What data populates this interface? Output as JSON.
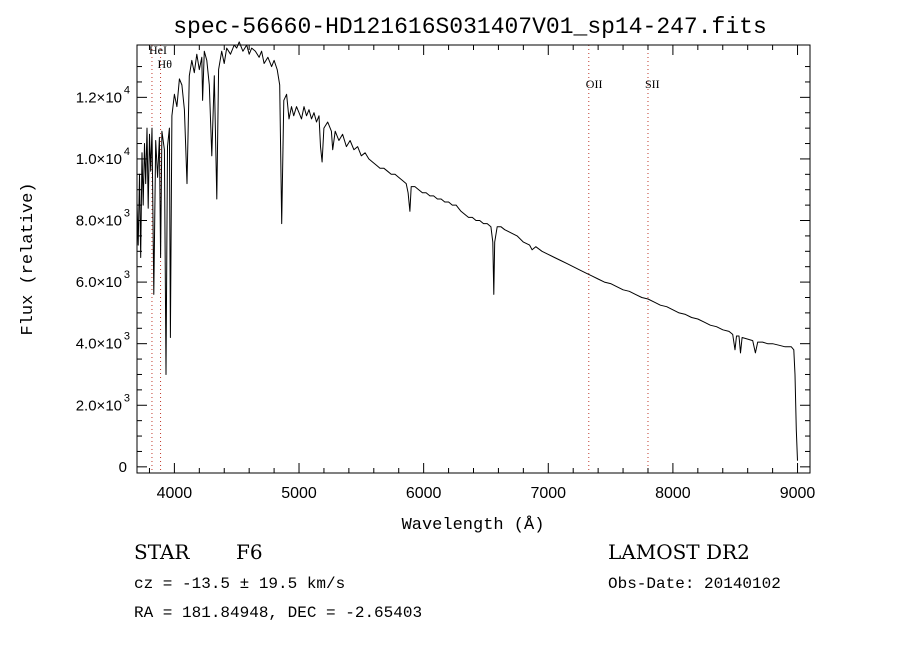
{
  "chart_data": {
    "type": "line",
    "title": "spec-56660-HD121616S031407V01_sp14-247.fits",
    "xlabel": "Wavelength (Å)",
    "ylabel": "Flux (relative)",
    "xlim": [
      3700,
      9100
    ],
    "ylim": [
      -200,
      13700
    ],
    "grid": false,
    "xticks": [
      {
        "value": 4000,
        "label": "4000"
      },
      {
        "value": 5000,
        "label": "5000"
      },
      {
        "value": 6000,
        "label": "6000"
      },
      {
        "value": 7000,
        "label": "7000"
      },
      {
        "value": 8000,
        "label": "8000"
      },
      {
        "value": 9000,
        "label": "9000"
      }
    ],
    "yticks": [
      {
        "value": 0,
        "mantissa": "0",
        "exponent": ""
      },
      {
        "value": 2000,
        "mantissa": "2.0×10",
        "exponent": "3"
      },
      {
        "value": 4000,
        "mantissa": "4.0×10",
        "exponent": "3"
      },
      {
        "value": 6000,
        "mantissa": "6.0×10",
        "exponent": "3"
      },
      {
        "value": 8000,
        "mantissa": "8.0×10",
        "exponent": "3"
      },
      {
        "value": 10000,
        "mantissa": "1.0×10",
        "exponent": "4"
      },
      {
        "value": 12000,
        "mantissa": "1.2×10",
        "exponent": "4"
      }
    ],
    "line_markers": [
      {
        "label": "HeI",
        "wavelength": 3820,
        "label_flux": 13400
      },
      {
        "label": "Hθ",
        "wavelength": 3889,
        "label_flux": 12950
      },
      {
        "label": "OII",
        "wavelength": 7325,
        "label_flux": 12300
      },
      {
        "label": "SII",
        "wavelength": 7800,
        "label_flux": 12300
      }
    ],
    "series": [
      {
        "points": [
          [
            3700,
            8600
          ],
          [
            3710,
            7200
          ],
          [
            3720,
            9500
          ],
          [
            3730,
            6800
          ],
          [
            3740,
            10200
          ],
          [
            3750,
            8500
          ],
          [
            3760,
            10500
          ],
          [
            3770,
            9200
          ],
          [
            3780,
            11000
          ],
          [
            3790,
            8400
          ],
          [
            3800,
            10800
          ],
          [
            3810,
            9600
          ],
          [
            3820,
            11000
          ],
          [
            3835,
            5600
          ],
          [
            3850,
            10600
          ],
          [
            3865,
            9400
          ],
          [
            3880,
            10700
          ],
          [
            3889,
            6800
          ],
          [
            3900,
            10900
          ],
          [
            3920,
            10300
          ],
          [
            3933,
            3000
          ],
          [
            3945,
            10400
          ],
          [
            3960,
            11000
          ],
          [
            3968,
            4200
          ],
          [
            3980,
            11400
          ],
          [
            4000,
            12100
          ],
          [
            4020,
            11700
          ],
          [
            4040,
            12600
          ],
          [
            4060,
            12400
          ],
          [
            4080,
            11600
          ],
          [
            4101,
            9200
          ],
          [
            4120,
            12700
          ],
          [
            4140,
            13200
          ],
          [
            4160,
            12800
          ],
          [
            4180,
            13400
          ],
          [
            4200,
            12900
          ],
          [
            4220,
            13300
          ],
          [
            4226,
            11900
          ],
          [
            4240,
            13500
          ],
          [
            4260,
            13200
          ],
          [
            4280,
            12400
          ],
          [
            4300,
            10100
          ],
          [
            4320,
            12700
          ],
          [
            4340,
            8700
          ],
          [
            4355,
            12900
          ],
          [
            4380,
            13500
          ],
          [
            4400,
            13100
          ],
          [
            4420,
            13600
          ],
          [
            4450,
            13400
          ],
          [
            4480,
            13700
          ],
          [
            4500,
            13600
          ],
          [
            4520,
            13800
          ],
          [
            4550,
            13500
          ],
          [
            4580,
            13700
          ],
          [
            4600,
            13400
          ],
          [
            4620,
            13600
          ],
          [
            4650,
            13500
          ],
          [
            4680,
            13300
          ],
          [
            4700,
            13500
          ],
          [
            4720,
            13100
          ],
          [
            4750,
            13300
          ],
          [
            4780,
            13000
          ],
          [
            4800,
            13200
          ],
          [
            4825,
            12900
          ],
          [
            4845,
            12400
          ],
          [
            4861,
            7900
          ],
          [
            4878,
            11900
          ],
          [
            4900,
            12100
          ],
          [
            4920,
            11300
          ],
          [
            4940,
            11700
          ],
          [
            4957,
            11400
          ],
          [
            4980,
            11700
          ],
          [
            5000,
            11500
          ],
          [
            5020,
            11300
          ],
          [
            5040,
            11700
          ],
          [
            5060,
            11400
          ],
          [
            5080,
            11600
          ],
          [
            5100,
            11300
          ],
          [
            5120,
            11500
          ],
          [
            5140,
            11200
          ],
          [
            5160,
            11400
          ],
          [
            5172,
            10400
          ],
          [
            5185,
            9900
          ],
          [
            5200,
            11000
          ],
          [
            5230,
            11200
          ],
          [
            5260,
            10900
          ],
          [
            5270,
            10300
          ],
          [
            5290,
            10900
          ],
          [
            5320,
            10600
          ],
          [
            5350,
            10800
          ],
          [
            5380,
            10400
          ],
          [
            5410,
            10600
          ],
          [
            5440,
            10300
          ],
          [
            5470,
            10400
          ],
          [
            5500,
            10100
          ],
          [
            5530,
            10200
          ],
          [
            5560,
            10000
          ],
          [
            5590,
            9900
          ],
          [
            5620,
            9800
          ],
          [
            5650,
            9700
          ],
          [
            5680,
            9700
          ],
          [
            5710,
            9600
          ],
          [
            5740,
            9500
          ],
          [
            5770,
            9500
          ],
          [
            5800,
            9400
          ],
          [
            5830,
            9300
          ],
          [
            5860,
            9200
          ],
          [
            5875,
            8900
          ],
          [
            5890,
            8300
          ],
          [
            5900,
            9100
          ],
          [
            5930,
            9100
          ],
          [
            5960,
            9000
          ],
          [
            5990,
            8900
          ],
          [
            6020,
            8900
          ],
          [
            6050,
            8800
          ],
          [
            6080,
            8800
          ],
          [
            6110,
            8700
          ],
          [
            6140,
            8700
          ],
          [
            6170,
            8600
          ],
          [
            6200,
            8600
          ],
          [
            6230,
            8500
          ],
          [
            6260,
            8500
          ],
          [
            6280,
            8400
          ],
          [
            6300,
            8300
          ],
          [
            6330,
            8200
          ],
          [
            6360,
            8100
          ],
          [
            6390,
            8100
          ],
          [
            6420,
            8000
          ],
          [
            6450,
            8000
          ],
          [
            6480,
            7900
          ],
          [
            6510,
            7900
          ],
          [
            6540,
            7800
          ],
          [
            6555,
            7300
          ],
          [
            6563,
            5600
          ],
          [
            6570,
            7300
          ],
          [
            6590,
            7800
          ],
          [
            6620,
            7800
          ],
          [
            6650,
            7700
          ],
          [
            6700,
            7600
          ],
          [
            6750,
            7500
          ],
          [
            6800,
            7300
          ],
          [
            6850,
            7200
          ],
          [
            6870,
            7050
          ],
          [
            6900,
            7150
          ],
          [
            6950,
            7000
          ],
          [
            7000,
            6900
          ],
          [
            7050,
            6800
          ],
          [
            7100,
            6700
          ],
          [
            7150,
            6600
          ],
          [
            7200,
            6500
          ],
          [
            7250,
            6400
          ],
          [
            7300,
            6300
          ],
          [
            7350,
            6200
          ],
          [
            7400,
            6100
          ],
          [
            7450,
            6000
          ],
          [
            7500,
            5950
          ],
          [
            7550,
            5850
          ],
          [
            7600,
            5750
          ],
          [
            7650,
            5700
          ],
          [
            7700,
            5600
          ],
          [
            7750,
            5500
          ],
          [
            7800,
            5450
          ],
          [
            7850,
            5350
          ],
          [
            7900,
            5250
          ],
          [
            7950,
            5200
          ],
          [
            8000,
            5100
          ],
          [
            8050,
            5000
          ],
          [
            8100,
            4950
          ],
          [
            8150,
            4850
          ],
          [
            8200,
            4800
          ],
          [
            8250,
            4700
          ],
          [
            8300,
            4600
          ],
          [
            8350,
            4550
          ],
          [
            8400,
            4450
          ],
          [
            8450,
            4400
          ],
          [
            8480,
            4300
          ],
          [
            8498,
            3800
          ],
          [
            8510,
            4250
          ],
          [
            8530,
            4250
          ],
          [
            8542,
            3700
          ],
          [
            8555,
            4200
          ],
          [
            8600,
            4150
          ],
          [
            8640,
            4100
          ],
          [
            8662,
            3700
          ],
          [
            8680,
            4050
          ],
          [
            8720,
            4050
          ],
          [
            8760,
            4000
          ],
          [
            8800,
            4000
          ],
          [
            8850,
            3950
          ],
          [
            8900,
            3900
          ],
          [
            8950,
            3900
          ],
          [
            8970,
            3800
          ],
          [
            8980,
            3000
          ],
          [
            8990,
            1200
          ],
          [
            9000,
            200
          ]
        ]
      }
    ]
  },
  "info": {
    "object_type": "STAR",
    "subclass": "F6",
    "survey": "LAMOST DR2",
    "redshift_line": "cz = -13.5 ± 19.5 km/s",
    "obs_date": "Obs-Date: 20140102",
    "coords": "RA = 181.84948, DEC =  -2.65403"
  }
}
